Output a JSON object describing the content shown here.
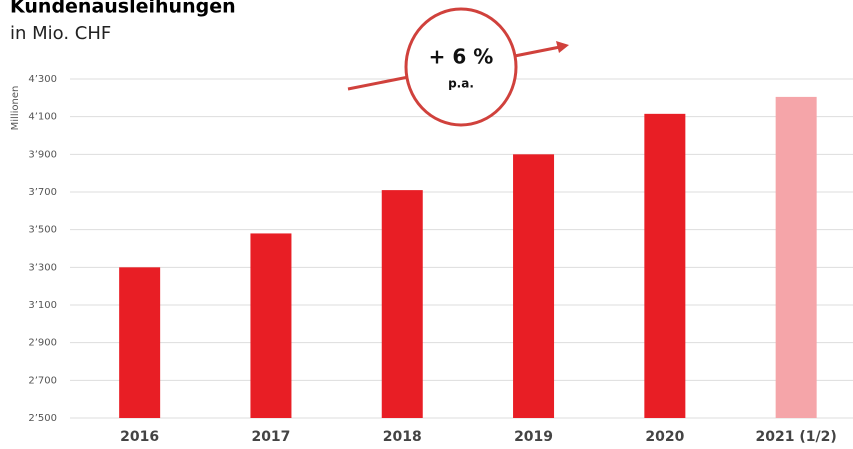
{
  "chart_data": {
    "type": "bar",
    "title": "Kundenausleihungen",
    "subtitle": "in Mio. CHF",
    "ylabel": "Millionen",
    "annotation": {
      "text": "+ 6 %",
      "subtext": "p.a."
    },
    "categories": [
      "2016",
      "2017",
      "2018",
      "2019",
      "2020",
      "2021 (1/2)"
    ],
    "values": [
      3300,
      3480,
      3710,
      3900,
      4115,
      4205
    ],
    "colors": [
      "#e81e25",
      "#e81e25",
      "#e81e25",
      "#e81e25",
      "#e81e25",
      "#f5a5a9"
    ],
    "ylim": [
      2500,
      4300
    ],
    "yticks": [
      {
        "value": 2500,
        "label": "2’500"
      },
      {
        "value": 2700,
        "label": "2’700"
      },
      {
        "value": 2900,
        "label": "2’900"
      },
      {
        "value": 3100,
        "label": "3’100"
      },
      {
        "value": 3300,
        "label": "3’300"
      },
      {
        "value": 3500,
        "label": "3’500"
      },
      {
        "value": 3700,
        "label": "3’700"
      },
      {
        "value": 3900,
        "label": "3’900"
      },
      {
        "value": 4100,
        "label": "4’100"
      },
      {
        "value": 4300,
        "label": "4’300"
      }
    ],
    "grid": true
  }
}
